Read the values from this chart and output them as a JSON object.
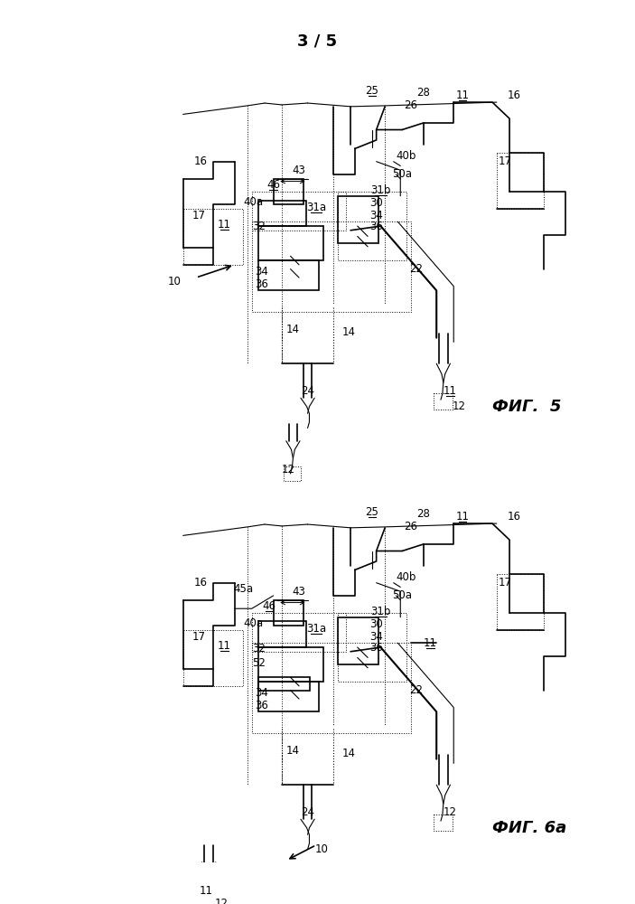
{
  "page_label": "3 / 5",
  "fig5_label": "ФИГ.  5",
  "fig6a_label": "ФИГ. 6a",
  "bg_color": "#ffffff",
  "lc": "#000000"
}
